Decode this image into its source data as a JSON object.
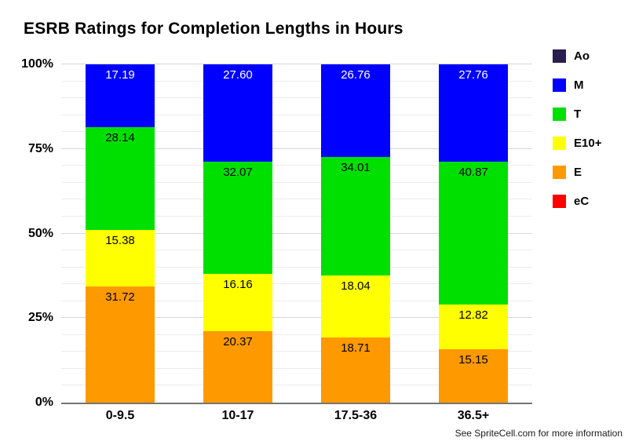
{
  "title": "ESRB Ratings for Completion Lengths in Hours",
  "footer": "See SpriteCell.com for more information",
  "chart_data": {
    "type": "bar",
    "subtype": "stacked-column-percent",
    "title": "ESRB Ratings for Completion Lengths in Hours",
    "xlabel": "",
    "ylabel": "",
    "categories": [
      "0-9.5",
      "10-17",
      "17.5-36",
      "36.5+"
    ],
    "series": [
      {
        "name": "Ao",
        "color": "#2a1d4f",
        "label_color": "#ffffff",
        "values": [
          null,
          null,
          null,
          null
        ]
      },
      {
        "name": "M",
        "color": "#0000ff",
        "label_color": "#ffffff",
        "values": [
          "17.19",
          "27.60",
          "26.76",
          "27.76"
        ]
      },
      {
        "name": "T",
        "color": "#00e000",
        "label_color": "#000000",
        "values": [
          "28.14",
          "32.07",
          "34.01",
          "40.87"
        ]
      },
      {
        "name": "E10+",
        "color": "#ffff00",
        "label_color": "#000000",
        "values": [
          "15.38",
          "16.16",
          "18.04",
          "12.82"
        ]
      },
      {
        "name": "E",
        "color": "#ff9900",
        "label_color": "#000000",
        "values": [
          "31.72",
          "20.37",
          "18.71",
          "15.15"
        ]
      },
      {
        "name": "eC",
        "color": "#ff0000",
        "label_color": "#ffffff",
        "values": [
          null,
          null,
          null,
          null
        ]
      }
    ],
    "y_axis": {
      "min": 0,
      "max": 100,
      "minor_step": 5,
      "major_step": 25,
      "ticks": [
        {
          "value": 0,
          "label": "0%"
        },
        {
          "value": 25,
          "label": "25%"
        },
        {
          "value": 50,
          "label": "50%"
        },
        {
          "value": 75,
          "label": "75%"
        },
        {
          "value": 100,
          "label": "100%"
        }
      ]
    },
    "legend_position": "right",
    "grid": true,
    "stacking_note": "columns normalized: segment height = value / column sum"
  }
}
